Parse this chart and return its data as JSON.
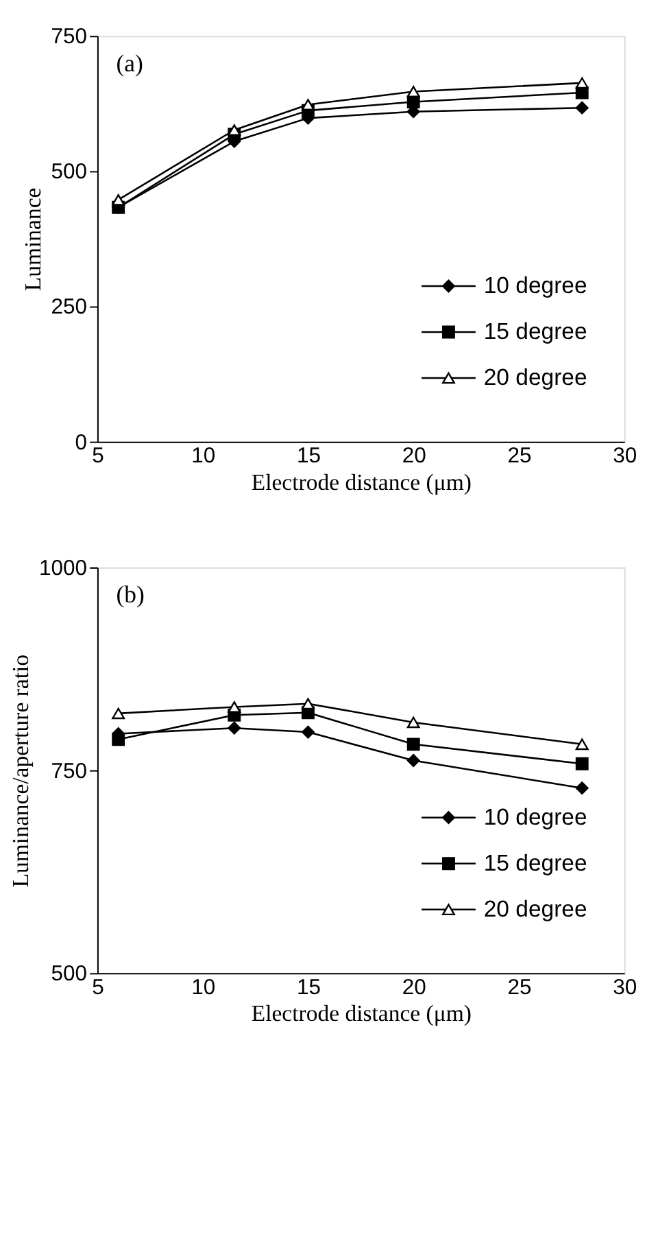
{
  "chart_data": [
    {
      "type": "line",
      "annotations": [
        "(a)"
      ],
      "xlabel": "Electrode distance (μm)",
      "ylabel": "Luminance",
      "x": [
        6,
        11.5,
        15,
        20,
        28
      ],
      "xlim": [
        5,
        30
      ],
      "xticks": [
        5,
        10,
        15,
        20,
        25,
        30
      ],
      "ylim": [
        0,
        750
      ],
      "yticks": [
        0,
        250,
        500,
        750
      ],
      "grid": false,
      "legend": "bottom right",
      "line_style": "solid",
      "series": [
        {
          "name": "10 degree",
          "color": "#000000",
          "marker": "diamond",
          "values": [
            433,
            555,
            598,
            610,
            617
          ]
        },
        {
          "name": "15 degree",
          "color": "#000000",
          "marker": "square",
          "values": [
            433,
            568,
            612,
            628,
            645
          ]
        },
        {
          "name": "20 degree",
          "color": "#000000",
          "marker": "triangle",
          "values": [
            447,
            576,
            623,
            647,
            663
          ]
        }
      ]
    },
    {
      "type": "line",
      "annotations": [
        "(b)"
      ],
      "xlabel": "Electrode distance (μm)",
      "ylabel": "Luminance/aperture ratio",
      "x": [
        6,
        11.5,
        15,
        20,
        28
      ],
      "xlim": [
        5,
        30
      ],
      "xticks": [
        5,
        10,
        15,
        20,
        25,
        30
      ],
      "ylim": [
        500,
        1000
      ],
      "yticks": [
        500,
        750,
        {
          "value": 1000,
          "label": "1000"
        }
      ],
      "grid": false,
      "legend": "bottom right",
      "line_style": "solid",
      "series": [
        {
          "name": "10 degree",
          "color": "#000000",
          "marker": "diamond",
          "values": [
            795,
            802,
            797,
            762,
            728
          ]
        },
        {
          "name": "15 degree",
          "color": "#000000",
          "marker": "square",
          "values": [
            788,
            818,
            821,
            782,
            758
          ]
        },
        {
          "name": "20 degree",
          "color": "#000000",
          "marker": "triangle",
          "values": [
            820,
            828,
            832,
            809,
            782
          ]
        }
      ]
    }
  ]
}
